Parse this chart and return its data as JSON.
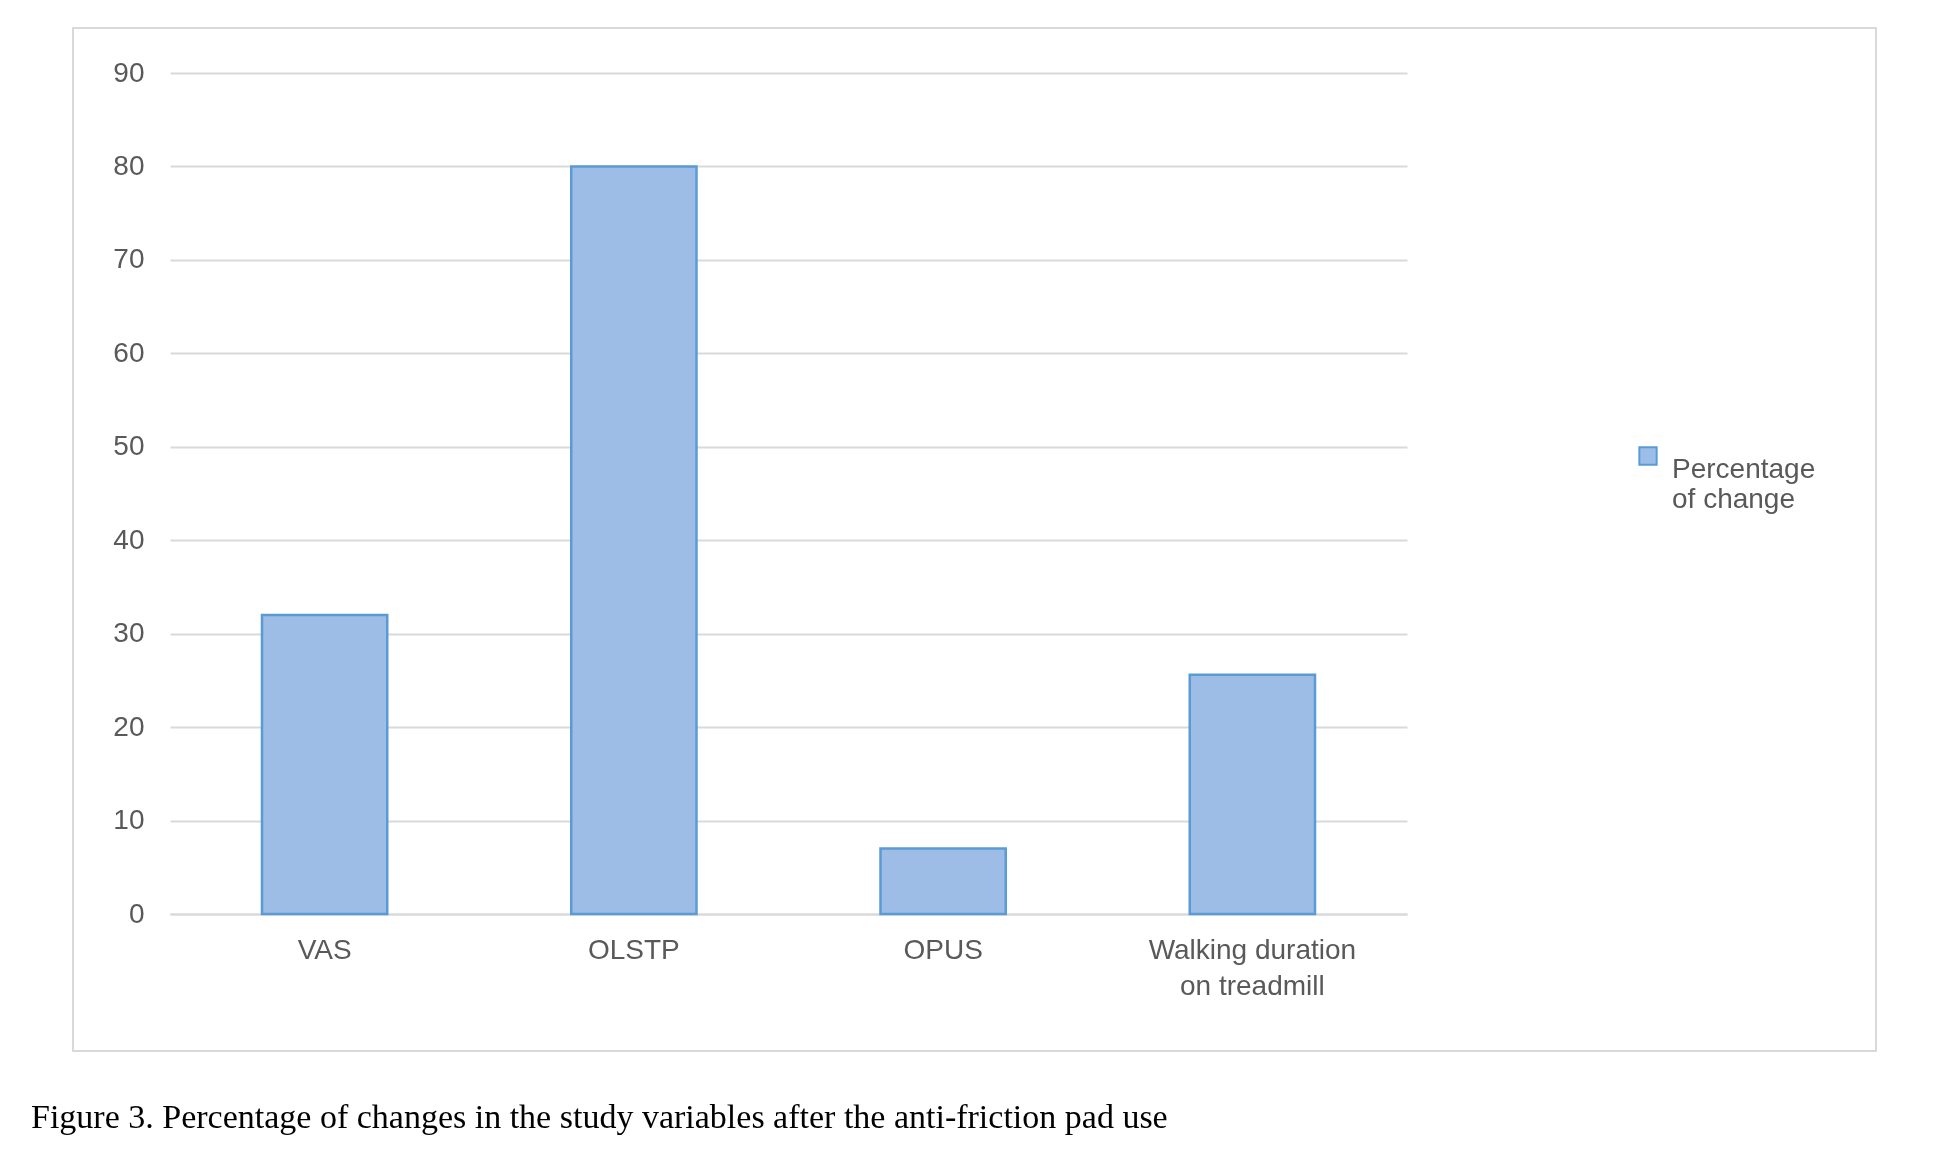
{
  "chart_data": {
    "type": "bar",
    "categories": [
      "VAS",
      "OLSTP",
      "OPUS",
      "Walking duration on treadmill"
    ],
    "series": [
      {
        "name": "Percentage of change",
        "color": "#9dbde6",
        "values": [
          32,
          80,
          7,
          25.6
        ]
      }
    ],
    "ylim": [
      0,
      90
    ],
    "yticks": [
      0,
      10,
      20,
      30,
      40,
      50,
      60,
      70,
      80,
      90
    ],
    "grid": "y",
    "legend": "right",
    "annotations": [
      "Figure 3. Percentage of changes in the study variables after the anti-friction pad use"
    ]
  }
}
